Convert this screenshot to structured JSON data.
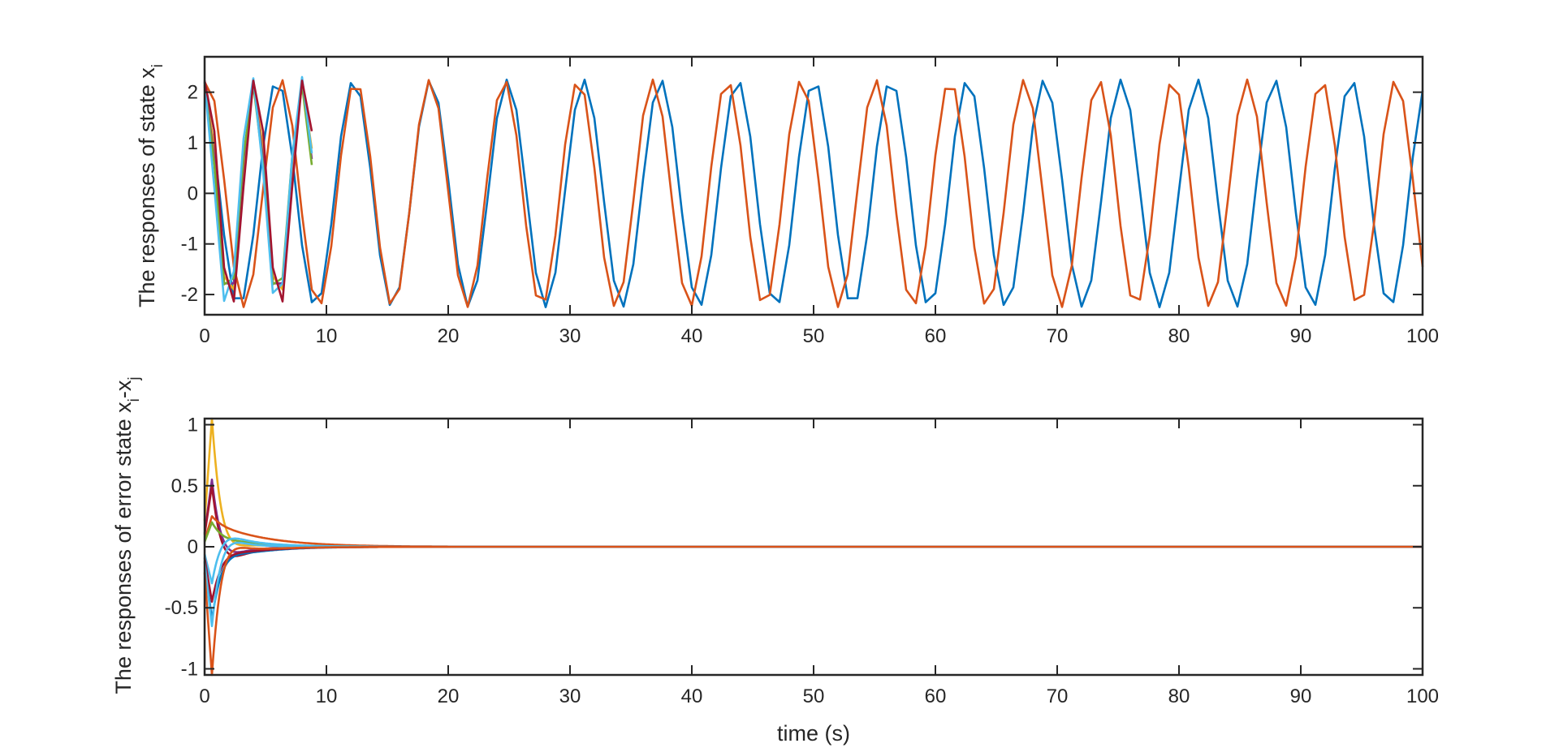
{
  "chart_data": [
    {
      "type": "line",
      "ylabel": "The responses of state x",
      "ylabel_sub": "i",
      "xlabel": "",
      "xlim": [
        0,
        100
      ],
      "ylim": [
        -2.4,
        2.7
      ],
      "xticks": [
        "0",
        "10",
        "20",
        "30",
        "40",
        "50",
        "60",
        "70",
        "80",
        "90",
        "100"
      ],
      "yticks": [
        "-2",
        "-1",
        "0",
        "1",
        "2"
      ],
      "grid": false,
      "series": [
        {
          "color": "#0072BD",
          "amplitude": 2.25,
          "period": 6.3,
          "phase": 0.35
        },
        {
          "color": "#D95319",
          "amplitude": 2.25,
          "period": 6.1,
          "phase": -0.2
        },
        {
          "color": "#EDB120",
          "amplitude": 2.2,
          "period": 4.0,
          "phase": -0.1,
          "decay_until": 6
        },
        {
          "color": "#7E2F8E",
          "amplitude": 2.2,
          "period": 4.0,
          "phase": 0.0,
          "decay_until": 6
        },
        {
          "color": "#77AC30",
          "amplitude": 2.15,
          "period": 4.0,
          "phase": 0.05,
          "decay_until": 6
        },
        {
          "color": "#4DBEEE",
          "amplitude": 2.3,
          "period": 4.1,
          "phase": 0.3,
          "decay_until": 6
        },
        {
          "color": "#A2142F",
          "amplitude": 2.3,
          "period": 4.0,
          "phase": -0.25,
          "decay_until": 6
        }
      ]
    },
    {
      "type": "line",
      "ylabel": "The responses of error state x",
      "ylabel_sub1": "i",
      "ylabel_mid": "-x",
      "ylabel_sub2": "j",
      "xlabel": "time (s)",
      "xlim": [
        0,
        100
      ],
      "ylim": [
        -1.05,
        1.05
      ],
      "xticks": [
        "0",
        "10",
        "20",
        "30",
        "40",
        "50",
        "60",
        "70",
        "80",
        "90",
        "100"
      ],
      "yticks": [
        "-1",
        "-0.5",
        "0",
        "0.5",
        "1"
      ],
      "grid": false,
      "series": [
        {
          "color": "#EDB120",
          "peak": 1.05,
          "tail": 0.1,
          "decay": 2.0
        },
        {
          "color": "#7E2F8E",
          "peak": 0.55,
          "tail": -0.08,
          "decay": 2.5
        },
        {
          "color": "#A2142F",
          "peak": 0.5,
          "tail": -0.15,
          "decay": 2.5
        },
        {
          "color": "#D95319",
          "peak": 0.25,
          "tail": 0.21,
          "decay": 4.0
        },
        {
          "color": "#77AC30",
          "peak": 0.2,
          "tail": 0.1,
          "decay": 3.0
        },
        {
          "color": "#4DBEEE",
          "peak": -0.3,
          "tail": 0.12,
          "decay": 3.0
        },
        {
          "color": "#0072BD",
          "peak": -0.6,
          "tail": -0.15,
          "decay": 3.0
        },
        {
          "color": "#A2142F",
          "peak": -0.45,
          "tail": -0.12,
          "decay": 3.0
        },
        {
          "color": "#4DBEEE",
          "peak": -0.65,
          "tail": 0.05,
          "decay": 2.5
        },
        {
          "color": "#D95319",
          "peak": -1.05,
          "tail": -0.05,
          "decay": 4.0
        }
      ]
    }
  ]
}
